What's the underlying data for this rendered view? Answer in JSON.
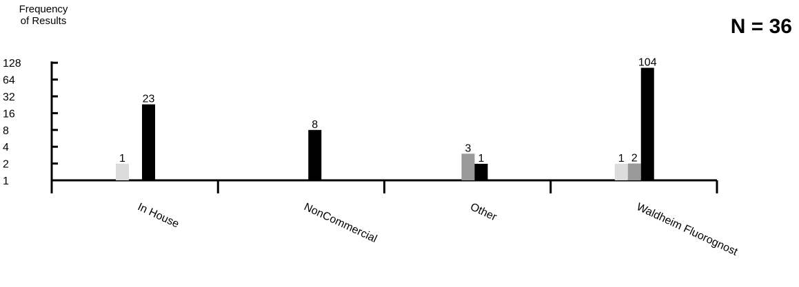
{
  "annotation": "N = 36",
  "chart_data": {
    "type": "bar",
    "ylabel": "Frequency\nof Results",
    "xlabel": "",
    "title": "",
    "yscale": "log2",
    "ylim": [
      1,
      128
    ],
    "yticks": [
      1,
      2,
      4,
      8,
      16,
      32,
      64,
      128
    ],
    "grid": false,
    "legend": "none",
    "categories": [
      "In House",
      "NonCommercial",
      "Other",
      "Waldheim Fluorognost"
    ],
    "series": [
      {
        "color": "#dcdcdc",
        "values": [
          1,
          null,
          null,
          1
        ]
      },
      {
        "color": "#999999",
        "values": [
          null,
          null,
          3,
          2
        ]
      },
      {
        "color": "#000000",
        "values": [
          23,
          8,
          1,
          104
        ]
      }
    ]
  }
}
